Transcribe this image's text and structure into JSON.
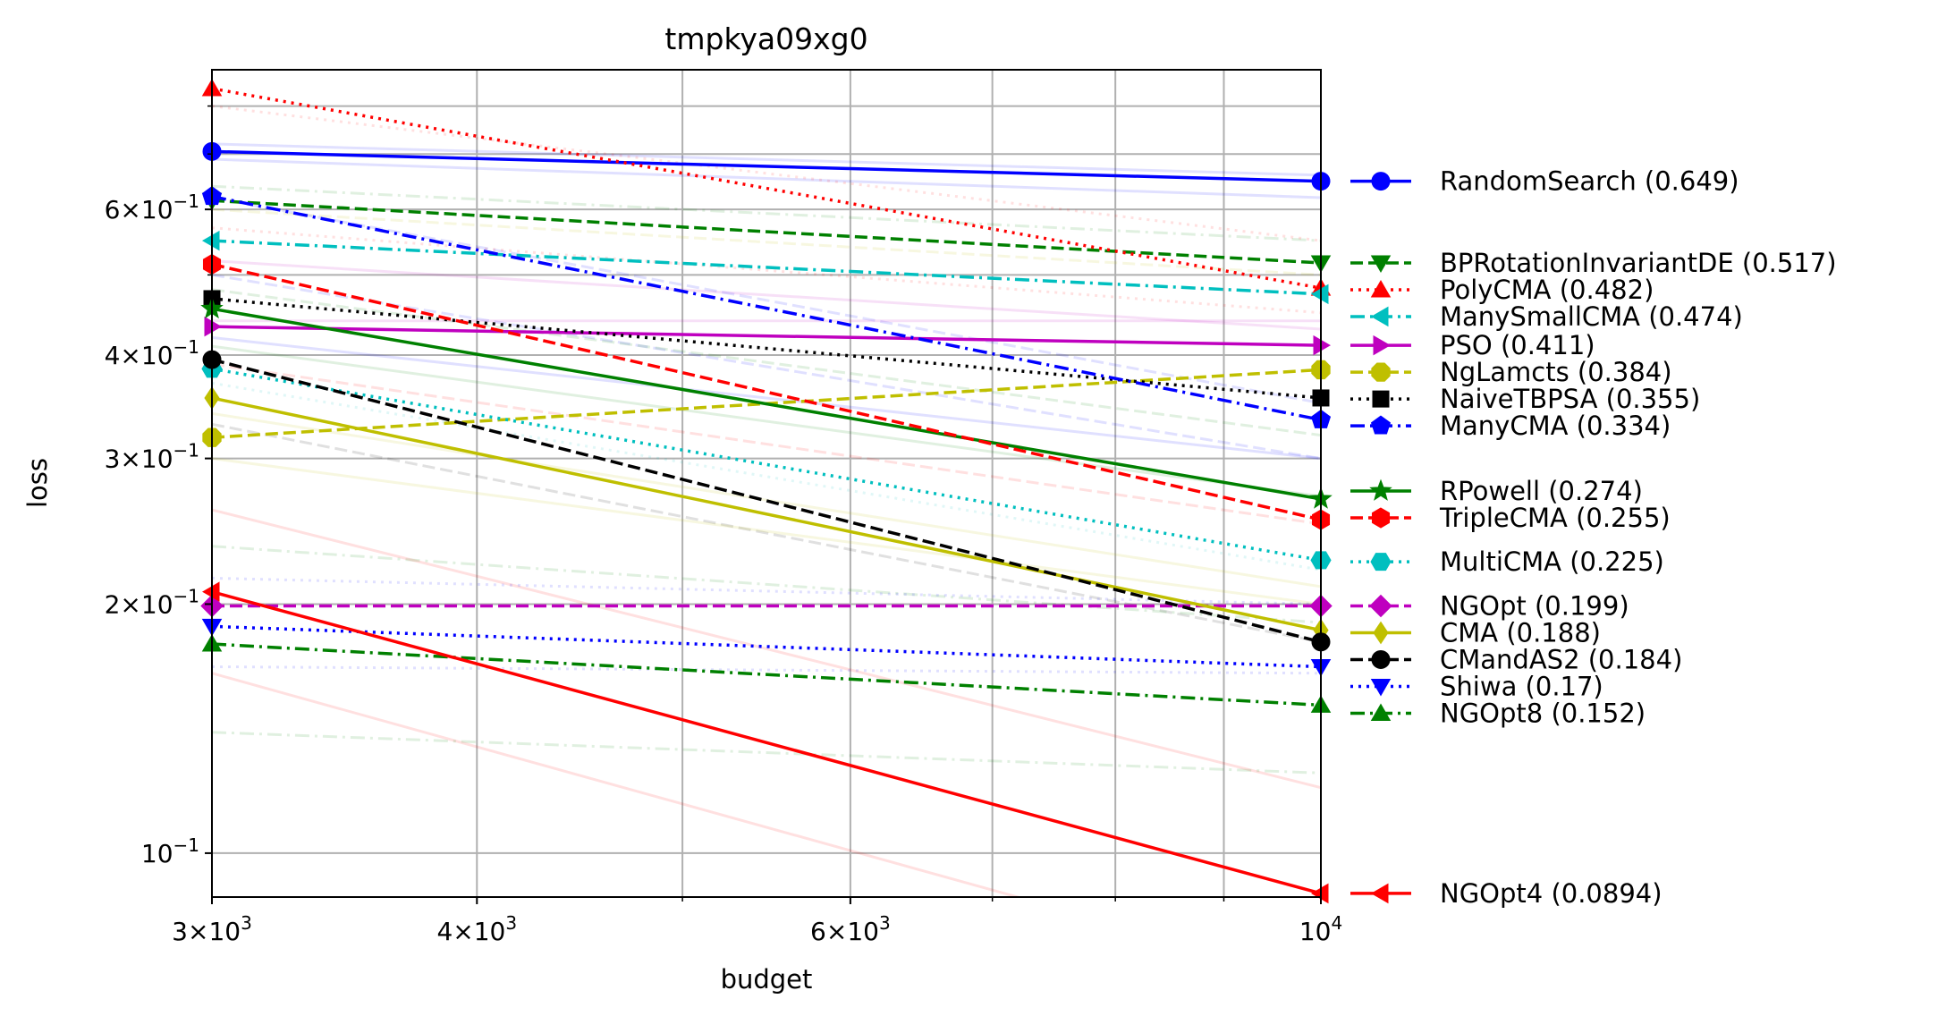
{
  "chart_data": {
    "type": "line",
    "title": "tmpkya09xg0",
    "xlabel": "budget",
    "ylabel": "loss",
    "xscale": "log",
    "yscale": "log",
    "xlim": [
      3000,
      10000
    ],
    "ylim": [
      0.0885,
      0.885
    ],
    "grid": true,
    "legend_position": "outside-right",
    "x_ticks": [
      {
        "value": 3000,
        "mant": "3",
        "exp": "3"
      },
      {
        "value": 4000,
        "mant": "4",
        "exp": "3"
      },
      {
        "value": 6000,
        "mant": "6",
        "exp": "3"
      },
      {
        "value": 10000,
        "mant": "",
        "exp": "4"
      }
    ],
    "x_minor_ticks": [
      5000,
      7000,
      8000,
      9000
    ],
    "y_ticks": [
      {
        "value": 0.1,
        "mant": "",
        "exp": "−1"
      },
      {
        "value": 0.2,
        "mant": "2",
        "exp": "−1"
      },
      {
        "value": 0.3,
        "mant": "3",
        "exp": "−1"
      },
      {
        "value": 0.4,
        "mant": "4",
        "exp": "−1"
      },
      {
        "value": 0.6,
        "mant": "6",
        "exp": "−1"
      }
    ],
    "y_minor_ticks": [
      0.5,
      0.7,
      0.8
    ],
    "series": [
      {
        "name": "RandomSearch (0.649)",
        "x": [
          3000,
          10000
        ],
        "y": [
          0.705,
          0.649
        ],
        "color": "#0000ff",
        "dash": "solid",
        "marker": "circle",
        "legend_loss": 0.649
      },
      {
        "name": "BPRotationInvariantDE (0.517)",
        "x": [
          3000,
          10000
        ],
        "y": [
          0.615,
          0.517
        ],
        "color": "#008000",
        "dash": "dashed",
        "marker": "triangle-down",
        "legend_loss": 0.517
      },
      {
        "name": "PolyCMA (0.482)",
        "x": [
          3000,
          10000
        ],
        "y": [
          0.84,
          0.482
        ],
        "color": "#ff0000",
        "dash": "dotted",
        "marker": "triangle-up",
        "legend_loss": 0.482
      },
      {
        "name": "ManySmallCMA (0.474)",
        "x": [
          3000,
          10000
        ],
        "y": [
          0.55,
          0.474
        ],
        "color": "#00bfbf",
        "dash": "dashdot",
        "marker": "triangle-left",
        "legend_loss": 0.474
      },
      {
        "name": "PSO (0.411)",
        "x": [
          3000,
          10000
        ],
        "y": [
          0.433,
          0.411
        ],
        "color": "#bf00bf",
        "dash": "solid",
        "marker": "triangle-right",
        "legend_loss": 0.411
      },
      {
        "name": "NgLamcts (0.384)",
        "x": [
          3000,
          10000
        ],
        "y": [
          0.318,
          0.384
        ],
        "color": "#bfbf00",
        "dash": "dashed",
        "marker": "octagon",
        "legend_loss": 0.384
      },
      {
        "name": "NaiveTBPSA (0.355)",
        "x": [
          3000,
          10000
        ],
        "y": [
          0.468,
          0.355
        ],
        "color": "#000000",
        "dash": "dotted",
        "marker": "square",
        "legend_loss": 0.355
      },
      {
        "name": "ManyCMA (0.334)",
        "x": [
          3000,
          10000
        ],
        "y": [
          0.622,
          0.334
        ],
        "color": "#0000ff",
        "dash": "dashdot",
        "marker": "pentagon",
        "legend_loss": 0.334
      },
      {
        "name": "RPowell (0.274)",
        "x": [
          3000,
          10000
        ],
        "y": [
          0.455,
          0.268
        ],
        "color": "#008000",
        "dash": "solid",
        "marker": "star",
        "legend_loss": 0.274
      },
      {
        "name": "TripleCMA (0.255)",
        "x": [
          3000,
          10000
        ],
        "y": [
          0.515,
          0.253
        ],
        "color": "#ff0000",
        "dash": "dashed",
        "marker": "hexagon",
        "legend_loss": 0.255
      },
      {
        "name": "MultiCMA (0.225)",
        "x": [
          3000,
          10000
        ],
        "y": [
          0.385,
          0.226
        ],
        "color": "#00bfbf",
        "dash": "dotted",
        "marker": "hexagon2",
        "legend_loss": 0.225
      },
      {
        "name": "NGOpt (0.199)",
        "x": [
          3000,
          10000
        ],
        "y": [
          0.199,
          0.199
        ],
        "color": "#bf00bf",
        "dash": "dashed",
        "marker": "diamond",
        "legend_loss": 0.199
      },
      {
        "name": "CMA (0.188)",
        "x": [
          3000,
          10000
        ],
        "y": [
          0.355,
          0.186
        ],
        "color": "#bfbf00",
        "dash": "solid",
        "marker": "thin-diamond",
        "legend_loss": 0.188
      },
      {
        "name": "CMandAS2 (0.184)",
        "x": [
          3000,
          10000
        ],
        "y": [
          0.395,
          0.18
        ],
        "color": "#000000",
        "dash": "dashed",
        "marker": "circle",
        "legend_loss": 0.184
      },
      {
        "name": "Shiwa (0.17)",
        "x": [
          3000,
          10000
        ],
        "y": [
          0.188,
          0.168
        ],
        "color": "#0000ff",
        "dash": "dotted",
        "marker": "triangle-down",
        "legend_loss": 0.17
      },
      {
        "name": "NGOpt8 (0.152)",
        "x": [
          3000,
          10000
        ],
        "y": [
          0.179,
          0.151
        ],
        "color": "#008000",
        "dash": "dashdot",
        "marker": "triangle-up",
        "legend_loss": 0.152
      },
      {
        "name": "NGOpt4 (0.0894)",
        "x": [
          3000,
          10000
        ],
        "y": [
          0.207,
          0.0894
        ],
        "color": "#ff0000",
        "dash": "solid",
        "marker": "triangle-left",
        "legend_loss": 0.0894
      }
    ],
    "background_series": [
      {
        "y": [
          0.72,
          0.66
        ],
        "color": "#0000ff",
        "dash": "solid"
      },
      {
        "y": [
          0.69,
          0.62
        ],
        "color": "#0000ff",
        "dash": "solid"
      },
      {
        "y": [
          0.64,
          0.55
        ],
        "color": "#008000",
        "dash": "dashdot"
      },
      {
        "y": [
          0.6,
          0.5
        ],
        "color": "#bfbf00",
        "dash": "dashed"
      },
      {
        "y": [
          0.57,
          0.45
        ],
        "color": "#ff0000",
        "dash": "dotted"
      },
      {
        "y": [
          0.8,
          0.55
        ],
        "color": "#ff0000",
        "dash": "dotted"
      },
      {
        "y": [
          0.52,
          0.43
        ],
        "color": "#bf00bf",
        "dash": "solid"
      },
      {
        "y": [
          0.5,
          0.3
        ],
        "color": "#0000ff",
        "dash": "dashed"
      },
      {
        "y": [
          0.48,
          0.32
        ],
        "color": "#008000",
        "dash": "dashed"
      },
      {
        "y": [
          0.42,
          0.3
        ],
        "color": "#0000ff",
        "dash": "solid"
      },
      {
        "y": [
          0.41,
          0.27
        ],
        "color": "#008000",
        "dash": "solid"
      },
      {
        "y": [
          0.39,
          0.25
        ],
        "color": "#ff0000",
        "dash": "dashed"
      },
      {
        "y": [
          0.37,
          0.22
        ],
        "color": "#00bfbf",
        "dash": "dotted"
      },
      {
        "y": [
          0.34,
          0.21
        ],
        "color": "#bfbf00",
        "dash": "solid"
      },
      {
        "y": [
          0.33,
          0.18
        ],
        "color": "#000000",
        "dash": "dashed"
      },
      {
        "y": [
          0.3,
          0.2
        ],
        "color": "#bfbf00",
        "dash": "solid"
      },
      {
        "y": [
          0.26,
          0.12
        ],
        "color": "#ff0000",
        "dash": "solid"
      },
      {
        "y": [
          0.235,
          0.19
        ],
        "color": "#008000",
        "dash": "dashdot"
      },
      {
        "y": [
          0.215,
          0.2
        ],
        "color": "#0000ff",
        "dash": "dotted"
      },
      {
        "y": [
          0.168,
          0.165
        ],
        "color": "#0000ff",
        "dash": "dotted"
      },
      {
        "y": [
          0.165,
          0.07
        ],
        "color": "#ff0000",
        "dash": "solid"
      },
      {
        "y": [
          0.14,
          0.125
        ],
        "color": "#008000",
        "dash": "dashdot"
      },
      {
        "y": [
          0.44,
          0.44
        ],
        "color": "#bf00bf",
        "dash": "solid"
      },
      {
        "y": [
          0.62,
          0.35
        ],
        "color": "#0000ff",
        "dash": "dashed"
      }
    ]
  }
}
